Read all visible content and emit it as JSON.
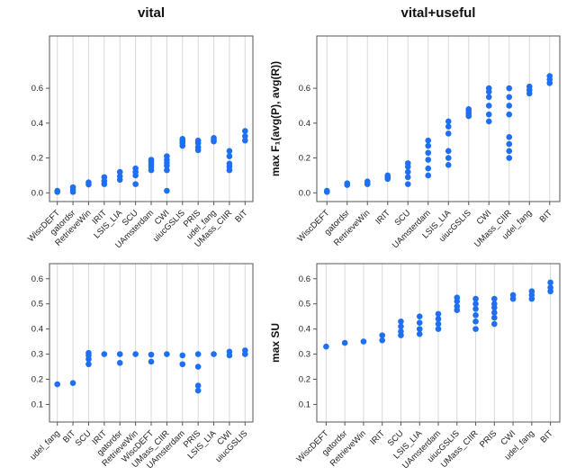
{
  "colors": {
    "dot": "#1e6ff2",
    "grid": "#d8d8d8",
    "axis": "#555555",
    "tick_text": "#222222"
  },
  "chart_data": [
    {
      "id": "f1-vital",
      "type": "scatter",
      "title": "vital",
      "xlabel": "",
      "ylabel": "",
      "ylim": [
        -0.05,
        0.9
      ],
      "yticks": [
        0.0,
        0.2,
        0.4,
        0.6
      ],
      "grid": "vertical-per-category",
      "categories": [
        "WiscDEFT",
        "gatordsr",
        "RetrieveWin",
        "IRIT",
        "LSIS_LIA",
        "SCU",
        "UAmsterdam",
        "CWI",
        "uiucGSLIS",
        "PRIS",
        "udel_fang",
        "UMass_CIIR",
        "BIT"
      ],
      "points": [
        [
          0.005,
          0.012
        ],
        [
          0.005,
          0.018,
          0.032
        ],
        [
          0.048,
          0.06
        ],
        [
          0.05,
          0.068,
          0.09
        ],
        [
          0.075,
          0.095,
          0.12
        ],
        [
          0.05,
          0.1,
          0.12,
          0.14
        ],
        [
          0.13,
          0.148,
          0.163,
          0.178,
          0.19
        ],
        [
          0.012,
          0.13,
          0.155,
          0.172,
          0.19,
          0.21
        ],
        [
          0.27,
          0.285,
          0.298,
          0.31
        ],
        [
          0.245,
          0.262,
          0.285,
          0.3
        ],
        [
          0.295,
          0.305,
          0.315
        ],
        [
          0.13,
          0.15,
          0.168,
          0.21,
          0.24
        ],
        [
          0.3,
          0.325,
          0.355
        ]
      ]
    },
    {
      "id": "f1-vital-useful",
      "type": "scatter",
      "title": "vital+useful",
      "xlabel": "",
      "ylabel": "max F₁(avg(P), avg(R))",
      "ylim": [
        -0.05,
        0.9
      ],
      "yticks": [
        0.0,
        0.2,
        0.4,
        0.6
      ],
      "grid": "vertical-per-category",
      "categories": [
        "WiscDEFT",
        "gatordsr",
        "RetrieveWin",
        "IRIT",
        "SCU",
        "UAmsterdam",
        "LSIS_LIA",
        "uiucGSLIS",
        "CWI",
        "UMass_CIIR",
        "udel_fang",
        "BIT"
      ],
      "points": [
        [
          0.005,
          0.012
        ],
        [
          0.045,
          0.055
        ],
        [
          0.05,
          0.065
        ],
        [
          0.08,
          0.09,
          0.1
        ],
        [
          0.05,
          0.09,
          0.12,
          0.15,
          0.17
        ],
        [
          0.1,
          0.14,
          0.19,
          0.23,
          0.27,
          0.3
        ],
        [
          0.16,
          0.2,
          0.24,
          0.34,
          0.38,
          0.41
        ],
        [
          0.44,
          0.455,
          0.47,
          0.48
        ],
        [
          0.41,
          0.45,
          0.5,
          0.55,
          0.58,
          0.6
        ],
        [
          0.2,
          0.24,
          0.28,
          0.32,
          0.45,
          0.5,
          0.55,
          0.6
        ],
        [
          0.57,
          0.59,
          0.61
        ],
        [
          0.63,
          0.65,
          0.67
        ]
      ]
    },
    {
      "id": "su-vital",
      "type": "scatter",
      "title": "vital",
      "xlabel": "",
      "ylabel": "",
      "ylim": [
        0.03,
        0.66
      ],
      "yticks": [
        0.1,
        0.2,
        0.3,
        0.4,
        0.5,
        0.6
      ],
      "grid": "vertical-per-category",
      "categories": [
        "udel_fang",
        "BIT",
        "SCU",
        "IRIT",
        "gatordsr",
        "RetrieveWin",
        "WiscDEFT",
        "UMass_CIIR",
        "UAmsterdam",
        "PRIS",
        "LSIS_LIA",
        "CWI",
        "uiucGSLIS"
      ],
      "points": [
        [
          0.18
        ],
        [
          0.185
        ],
        [
          0.26,
          0.28,
          0.295,
          0.305
        ],
        [
          0.3
        ],
        [
          0.265,
          0.3
        ],
        [
          0.3
        ],
        [
          0.27,
          0.298
        ],
        [
          0.3
        ],
        [
          0.26,
          0.295
        ],
        [
          0.155,
          0.175,
          0.25,
          0.3
        ],
        [
          0.3
        ],
        [
          0.295,
          0.31
        ],
        [
          0.3,
          0.315
        ]
      ]
    },
    {
      "id": "su-vital-useful",
      "type": "scatter",
      "title": "vital+useful",
      "xlabel": "",
      "ylabel": "max SU",
      "ylim": [
        0.03,
        0.66
      ],
      "yticks": [
        0.1,
        0.2,
        0.3,
        0.4,
        0.5,
        0.6
      ],
      "grid": "vertical-per-category",
      "categories": [
        "WiscDEFT",
        "gatordsr",
        "RetrieveWin",
        "IRIT",
        "SCU",
        "LSIS_LIA",
        "UAmsterdam",
        "uiucGSLIS",
        "UMass_CIIR",
        "PRIS",
        "CWI",
        "udel_fang",
        "BIT"
      ],
      "points": [
        [
          0.33
        ],
        [
          0.345
        ],
        [
          0.35
        ],
        [
          0.355,
          0.375
        ],
        [
          0.375,
          0.39,
          0.41,
          0.43
        ],
        [
          0.38,
          0.4,
          0.425,
          0.45
        ],
        [
          0.4,
          0.42,
          0.44,
          0.46
        ],
        [
          0.475,
          0.49,
          0.51,
          0.525
        ],
        [
          0.4,
          0.43,
          0.455,
          0.48,
          0.5,
          0.52
        ],
        [
          0.42,
          0.445,
          0.465,
          0.485,
          0.5,
          0.52
        ],
        [
          0.52,
          0.535
        ],
        [
          0.52,
          0.535,
          0.55
        ],
        [
          0.55,
          0.565,
          0.585
        ]
      ]
    }
  ]
}
